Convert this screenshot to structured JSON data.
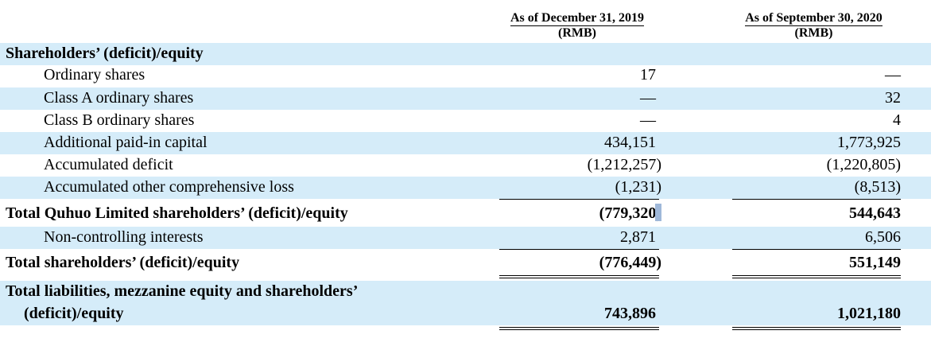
{
  "headers": {
    "col1": {
      "line1": "As of December 31, 2019",
      "line2": "(RMB)"
    },
    "col2": {
      "line1": "As of September 30, 2020",
      "line2": "(RMB)"
    }
  },
  "rows": [
    {
      "label": "Shareholders’ (deficit)/equity",
      "col1": "",
      "col2": ""
    },
    {
      "label": "Ordinary shares",
      "col1": "17",
      "col2": "—"
    },
    {
      "label": "Class A ordinary shares",
      "col1": "—",
      "col2": "32"
    },
    {
      "label": "Class B ordinary shares",
      "col1": "—",
      "col2": "4"
    },
    {
      "label": "Additional paid-in capital",
      "col1": "434,151",
      "col2": "1,773,925"
    },
    {
      "label": "Accumulated deficit",
      "col1": "(1,212,257)",
      "col2": "(1,220,805)"
    },
    {
      "label": "Accumulated other comprehensive loss",
      "col1": "(1,231)",
      "col2": "(8,513)"
    },
    {
      "label": "Total Quhuo Limited shareholders’ (deficit)/equity",
      "col1": "(779,320)",
      "col2": "544,643"
    },
    {
      "label": "Non-controlling interests",
      "col1": "2,871",
      "col2": "6,506"
    },
    {
      "label": "Total shareholders’ (deficit)/equity",
      "col1": "(776,449)",
      "col2": "551,149"
    },
    {
      "label_line1": "Total liabilities, mezzanine equity and shareholders’",
      "label_line2": "(deficit)/equity",
      "col1": "743,896",
      "col2": "1,021,180"
    }
  ]
}
